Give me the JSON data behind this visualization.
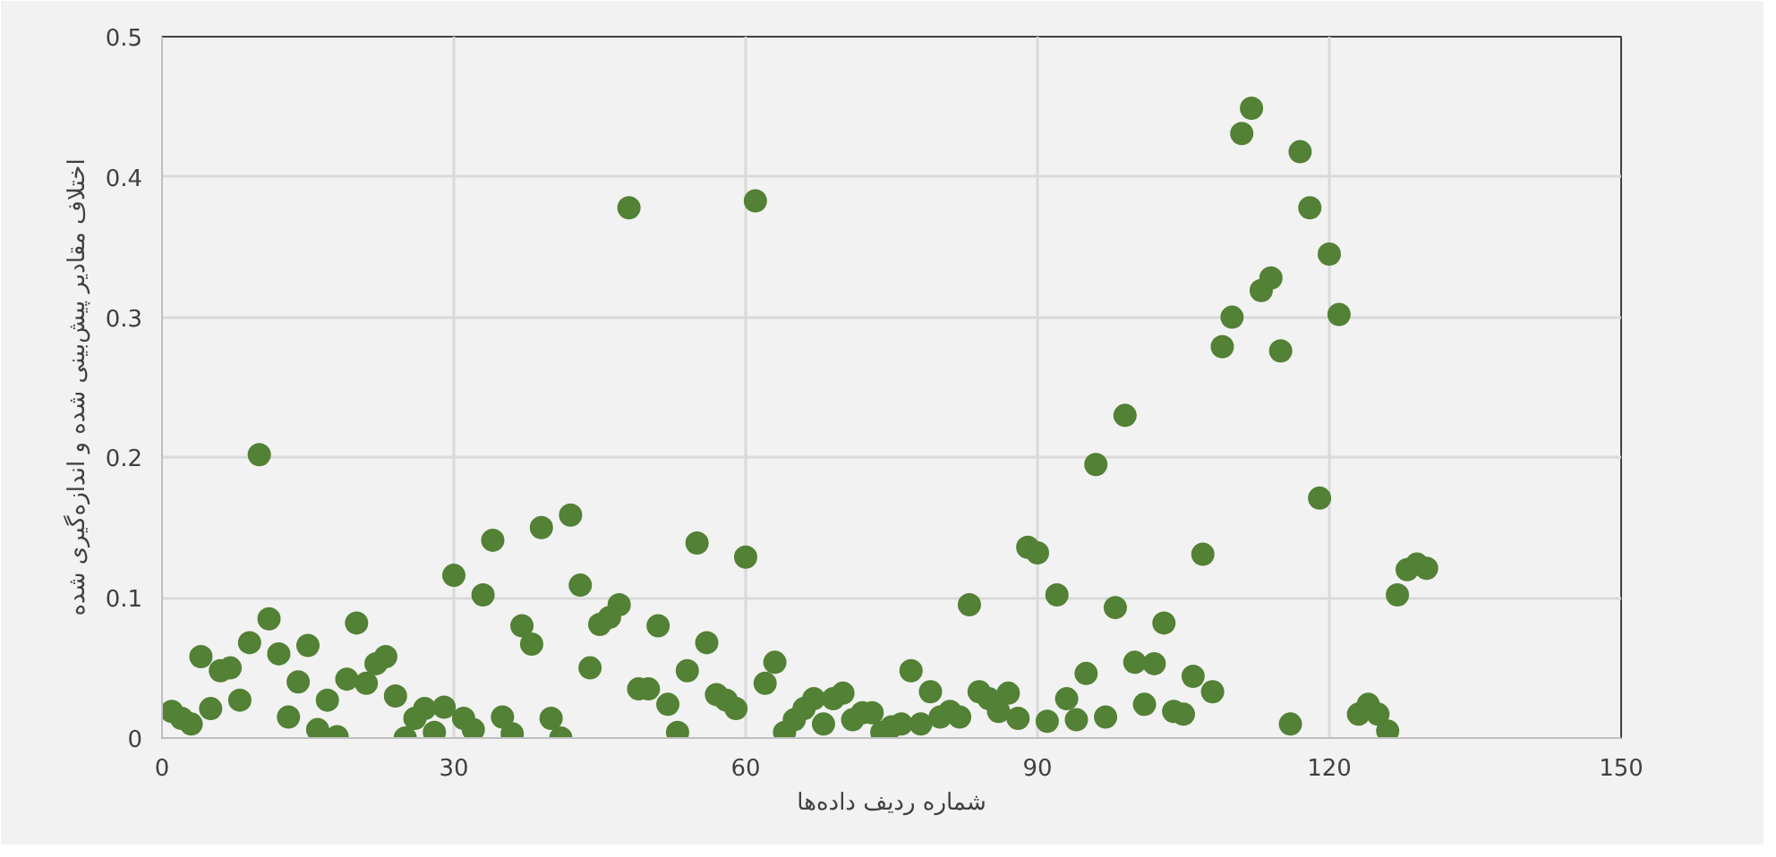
{
  "chart_data": {
    "type": "scatter",
    "xlabel": "شماره ردیف داده‌ها",
    "ylabel": "اختلاف مقادیر پیش‌بینی شده و اندازه‌گیری شده",
    "xlim": [
      0,
      150
    ],
    "xticks": [
      0,
      30,
      60,
      90,
      120,
      150
    ],
    "ylim": [
      0,
      0.5
    ],
    "yticks": [
      0,
      0.1,
      0.2,
      0.3,
      0.4,
      0.5
    ],
    "grid": true,
    "marker": "circle",
    "series": [
      {
        "color": "#538135",
        "x": [
          1,
          2,
          3,
          4,
          5,
          6,
          7,
          8,
          9,
          10,
          11,
          12,
          13,
          14,
          15,
          16,
          17,
          18,
          19,
          20,
          21,
          22,
          23,
          24,
          25,
          26,
          27,
          28,
          29,
          30,
          31,
          32,
          33,
          34,
          35,
          36,
          37,
          38,
          39,
          40,
          41,
          42,
          43,
          44,
          45,
          46,
          47,
          48,
          49,
          50,
          51,
          52,
          53,
          54,
          55,
          56,
          57,
          58,
          59,
          60,
          61,
          62,
          63,
          64,
          65,
          66,
          67,
          68,
          69,
          70,
          71,
          72,
          73,
          74,
          75,
          76,
          77,
          78,
          79,
          80,
          81,
          82,
          83,
          84,
          85,
          86,
          87,
          88,
          89,
          90,
          91,
          92,
          93,
          94,
          95,
          96,
          97,
          98,
          99,
          100,
          101,
          102,
          103,
          104,
          105,
          106,
          107,
          108,
          109,
          110,
          111,
          112,
          113,
          114,
          115,
          116,
          117,
          118,
          119,
          120,
          121,
          123,
          124,
          125,
          126,
          127,
          128,
          129,
          130
        ],
        "values": [
          0.019,
          0.014,
          0.01,
          0.058,
          0.021,
          0.048,
          0.05,
          0.027,
          0.068,
          0.202,
          0.085,
          0.06,
          0.015,
          0.04,
          0.066,
          0.006,
          0.027,
          0.001,
          0.042,
          0.082,
          0.039,
          0.053,
          0.058,
          0.03,
          0.0,
          0.014,
          0.021,
          0.004,
          0.022,
          0.116,
          0.014,
          0.006,
          0.102,
          0.141,
          0.015,
          0.003,
          0.08,
          0.067,
          0.15,
          0.014,
          0.0,
          0.159,
          0.109,
          0.05,
          0.081,
          0.086,
          0.095,
          0.378,
          0.035,
          0.035,
          0.08,
          0.024,
          0.004,
          0.048,
          0.139,
          0.068,
          0.031,
          0.027,
          0.021,
          0.129,
          0.383,
          0.039,
          0.054,
          0.004,
          0.013,
          0.021,
          0.028,
          0.01,
          0.028,
          0.032,
          0.013,
          0.018,
          0.018,
          0.004,
          0.008,
          0.01,
          0.048,
          0.01,
          0.033,
          0.015,
          0.019,
          0.015,
          0.095,
          0.033,
          0.028,
          0.019,
          0.032,
          0.014,
          0.136,
          0.132,
          0.012,
          0.102,
          0.028,
          0.013,
          0.046,
          0.195,
          0.015,
          0.093,
          0.23,
          0.054,
          0.024,
          0.053,
          0.082,
          0.019,
          0.017,
          0.044,
          0.131,
          0.033,
          0.279,
          0.3,
          0.431,
          0.449,
          0.319,
          0.328,
          0.276,
          0.01,
          0.418,
          0.378,
          0.171,
          0.345,
          0.302,
          0.017,
          0.024,
          0.017,
          0.005,
          0.102,
          0.12,
          0.124,
          0.121
        ]
      }
    ]
  }
}
